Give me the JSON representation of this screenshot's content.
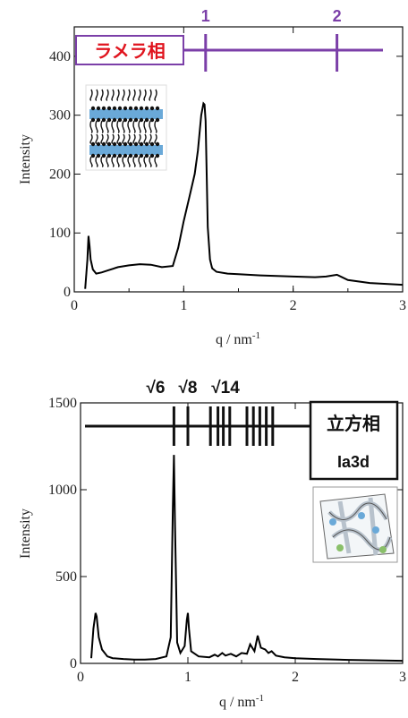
{
  "chart_data": [
    {
      "type": "line",
      "label": "ラメラ相",
      "label_color": "#e0141e",
      "index_color": "#7b3fa8",
      "index_marks": [
        {
          "q": 1.2,
          "label": "1"
        },
        {
          "q": 2.4,
          "label": "2"
        }
      ],
      "xlabel_main": "q / nm",
      "xlabel_sup": "-1",
      "ylabel": "Intensity",
      "xlim": [
        0,
        3
      ],
      "ylim": [
        0,
        450
      ],
      "xticks": [
        0,
        1,
        2,
        3
      ],
      "yticks": [
        0,
        100,
        200,
        300,
        400
      ],
      "series": [
        {
          "x": [
            0.1,
            0.12,
            0.13,
            0.14,
            0.15,
            0.17,
            0.2,
            0.25,
            0.3,
            0.4,
            0.5,
            0.6,
            0.7,
            0.8,
            0.9,
            0.95,
            1.0,
            1.05,
            1.1,
            1.13,
            1.16,
            1.18,
            1.19,
            1.2,
            1.21,
            1.22,
            1.24,
            1.26,
            1.3,
            1.4,
            1.5,
            1.7,
            2.0,
            2.2,
            2.3,
            2.4,
            2.5,
            2.7,
            3.0
          ],
          "y": [
            5,
            55,
            95,
            78,
            55,
            38,
            31,
            33,
            36,
            42,
            45,
            47,
            46,
            42,
            44,
            75,
            120,
            160,
            200,
            240,
            300,
            320,
            318,
            290,
            200,
            110,
            55,
            40,
            34,
            31,
            30,
            28,
            26,
            25,
            26,
            29,
            20,
            15,
            12
          ]
        }
      ]
    },
    {
      "type": "line",
      "label_line1": "立方相",
      "label_line2": "Ia3d",
      "peak_labels": [
        "√6",
        "√8",
        "√14"
      ],
      "index_marks_q": [
        0.87,
        1.0,
        1.21,
        1.28,
        1.33,
        1.39,
        1.55,
        1.61,
        1.67,
        1.73,
        1.79
      ],
      "xlabel_main": "q / nm",
      "xlabel_sup": "-1",
      "ylabel": "Intensity",
      "xlim": [
        0,
        3
      ],
      "ylim": [
        0,
        1500
      ],
      "xticks": [
        0,
        1,
        2,
        3
      ],
      "yticks": [
        0,
        500,
        1000,
        1500
      ],
      "series": [
        {
          "x": [
            0.1,
            0.12,
            0.14,
            0.15,
            0.17,
            0.2,
            0.25,
            0.3,
            0.4,
            0.5,
            0.6,
            0.7,
            0.8,
            0.84,
            0.86,
            0.87,
            0.88,
            0.9,
            0.93,
            0.97,
            0.99,
            1.0,
            1.01,
            1.03,
            1.1,
            1.2,
            1.25,
            1.28,
            1.32,
            1.35,
            1.4,
            1.45,
            1.5,
            1.55,
            1.58,
            1.62,
            1.65,
            1.68,
            1.72,
            1.75,
            1.78,
            1.82,
            1.9,
            2.0,
            2.2,
            2.5,
            3.0
          ],
          "y": [
            30,
            200,
            290,
            270,
            150,
            80,
            40,
            30,
            25,
            22,
            22,
            25,
            40,
            150,
            900,
            1200,
            800,
            120,
            60,
            100,
            250,
            290,
            200,
            70,
            40,
            35,
            50,
            40,
            60,
            45,
            55,
            40,
            60,
            55,
            110,
            70,
            160,
            90,
            80,
            60,
            70,
            45,
            35,
            30,
            25,
            20,
            15
          ]
        }
      ]
    }
  ]
}
